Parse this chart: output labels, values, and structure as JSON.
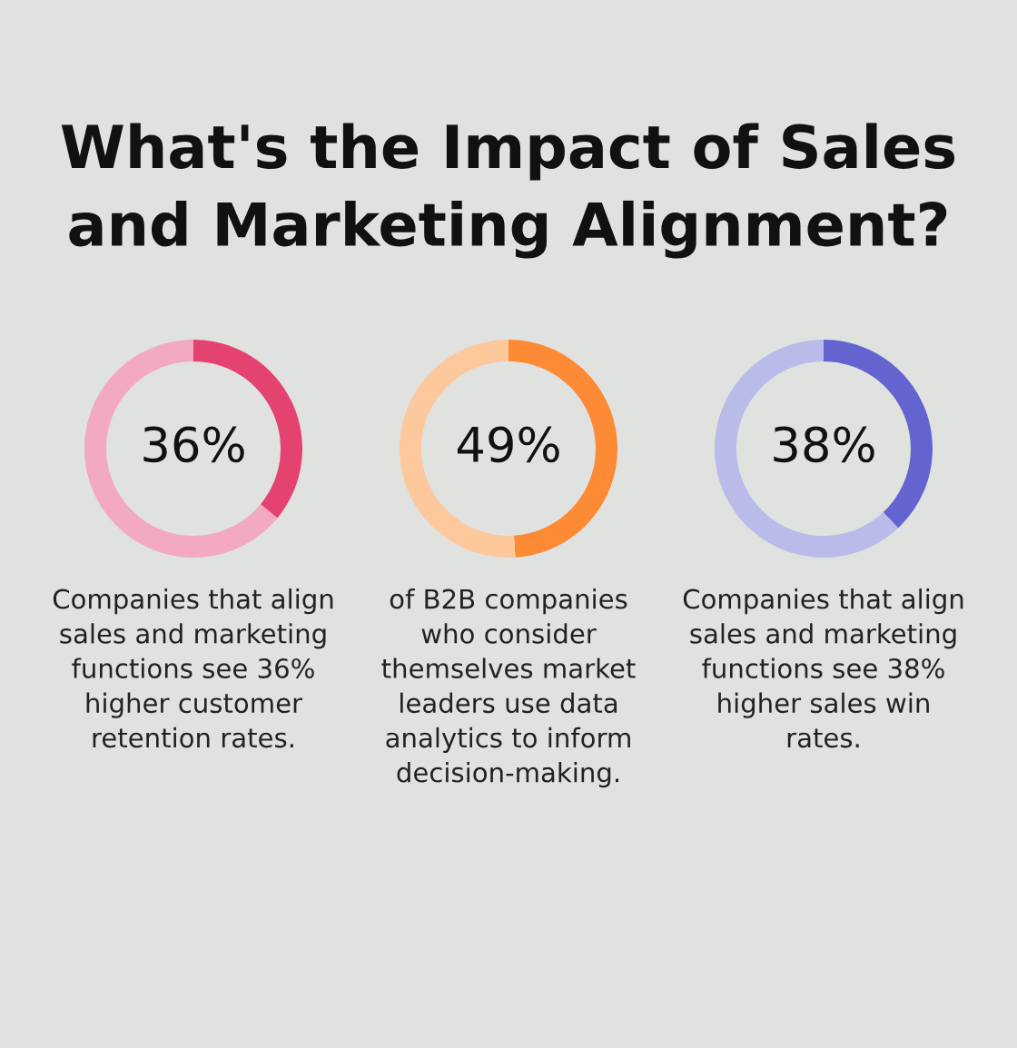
{
  "chart_data": [
    {
      "type": "donut",
      "title": "What's the Impact of Sales\nand Marketing Alignment?",
      "categories": [
        null,
        null
      ],
      "values": [
        36,
        64
      ],
      "colors": [
        "#e4436f",
        "#f2a9c1"
      ],
      "value_labels": [
        "36%",
        null
      ],
      "annotations": [
        "Companies that align\nsales and marketing\nfunctions see 36%\nhigher customer\nretention rates."
      ]
    },
    {
      "type": "donut",
      "categories": [
        null,
        null
      ],
      "values": [
        49,
        51
      ],
      "colors": [
        "#fd8a35",
        "#fec89d"
      ],
      "value_labels": [
        "49%",
        null
      ],
      "annotations": [
        "of B2B companies\nwho consider\nthemselves market\nleaders use data\nanalytics to inform\ndecision-making."
      ]
    },
    {
      "type": "donut",
      "categories": [
        null,
        null
      ],
      "values": [
        38,
        62
      ],
      "colors": [
        "#6464d1",
        "#babbe9"
      ],
      "value_labels": [
        "38%",
        null
      ],
      "annotations": [
        "Companies that align\nsales and marketing\nfunctions see 38%\nhigher sales win\nrates."
      ]
    }
  ]
}
